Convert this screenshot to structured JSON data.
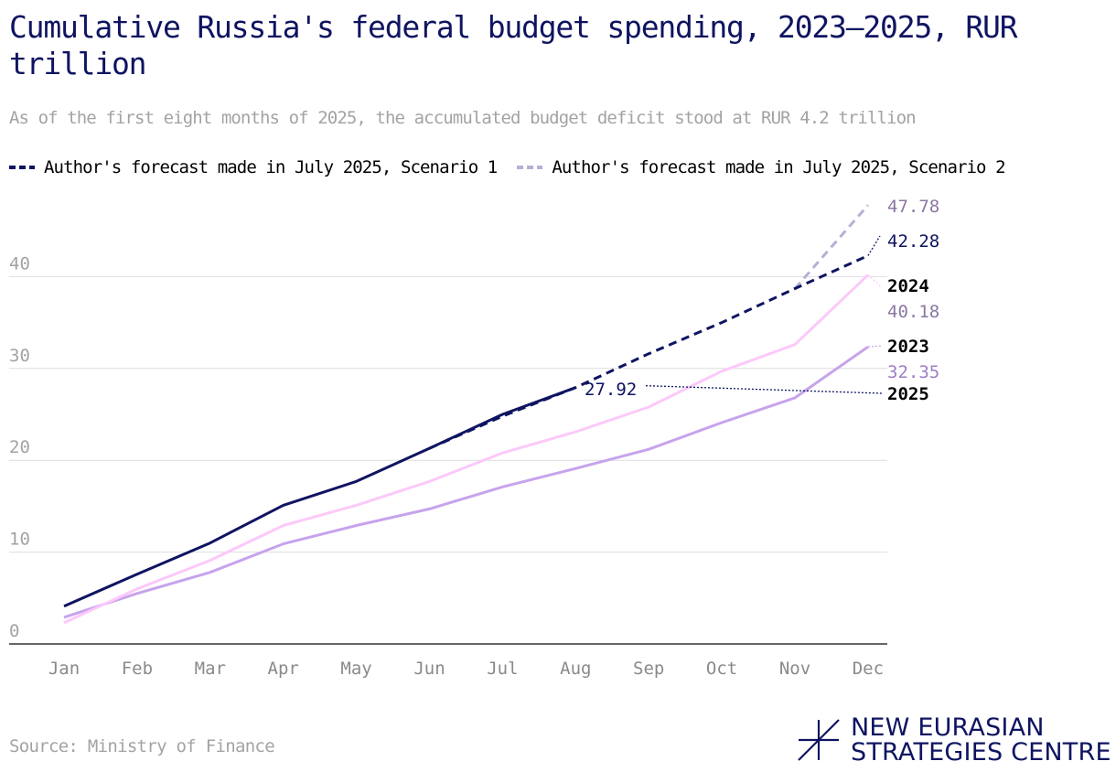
{
  "title": "Cumulative Russia's federal budget spending, 2023–2025, RUR trillion",
  "subtitle": "As of the first eight months of 2025, the accumulated budget deficit stood at RUR 4.2 trillion",
  "legend": [
    {
      "label": "Author's forecast made in July 2025, Scenario 1",
      "color": "#0f1461"
    },
    {
      "label": "Author's forecast made in July 2025, Scenario 2",
      "color": "#b8aed6"
    }
  ],
  "source": "Source: Ministry of Finance",
  "logo": {
    "line1": "NEW EURASIAN",
    "line2": "STRATEGIES CENTRE"
  },
  "chart_data": {
    "type": "line",
    "categories": [
      "Jan",
      "Feb",
      "Mar",
      "Apr",
      "May",
      "Jun",
      "Jul",
      "Aug",
      "Sep",
      "Oct",
      "Nov",
      "Dec"
    ],
    "ylim": [
      0,
      48
    ],
    "yticks": [
      0,
      10,
      20,
      30,
      40
    ],
    "grid": true,
    "series": [
      {
        "name": "2023",
        "color": "#c7a3ec",
        "width": 3,
        "values": [
          2.9,
          5.5,
          7.8,
          10.9,
          12.9,
          14.7,
          17.1,
          19.1,
          21.2,
          24.1,
          26.8,
          32.35
        ],
        "label": "2023",
        "value_label": "32.35",
        "value_label_color": "#9b7fc4"
      },
      {
        "name": "2024",
        "color": "#fcc9fa",
        "width": 3,
        "values": [
          2.3,
          6.0,
          9.1,
          12.9,
          15.1,
          17.7,
          20.8,
          23.1,
          25.8,
          29.7,
          32.6,
          40.18
        ],
        "label": "2024",
        "value_label": "40.18",
        "value_label_color": "#8a78a3"
      },
      {
        "name": "2025",
        "color": "#0f1461",
        "width": 3,
        "values": [
          4.1,
          7.6,
          11.0,
          15.1,
          17.7,
          21.3,
          25.0,
          27.92,
          null,
          null,
          null,
          null
        ],
        "label": "2025",
        "value_label": "27.92"
      },
      {
        "name": "Author's forecast made in July 2025, Scenario 1",
        "color": "#0f1461",
        "width": 3,
        "dash": "9,6",
        "values": [
          null,
          null,
          null,
          null,
          null,
          21.3,
          24.8,
          27.92,
          31.6,
          35.0,
          38.7,
          42.28
        ],
        "value_label": "42.28",
        "value_label_color": "#0f1461"
      },
      {
        "name": "Author's forecast made in July 2025, Scenario 2",
        "color": "#b8aed6",
        "width": 3,
        "dash": "9,6",
        "values": [
          null,
          null,
          null,
          null,
          null,
          null,
          null,
          null,
          null,
          null,
          38.7,
          47.78
        ],
        "value_label": "47.78",
        "value_label_color": "#8a78a3"
      }
    ]
  }
}
